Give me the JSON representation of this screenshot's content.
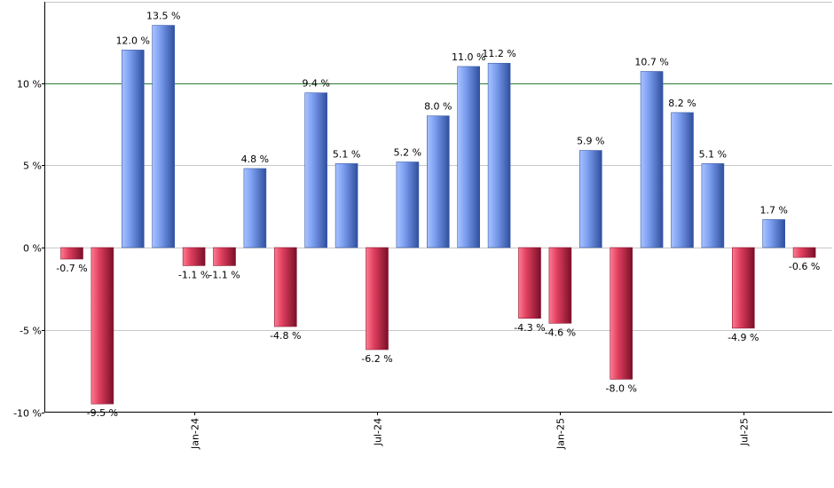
{
  "chart_data": {
    "type": "bar",
    "title": "",
    "xlabel": "",
    "ylabel": "",
    "ylim": [
      -10,
      14
    ],
    "y_ticks": [
      {
        "value": -10,
        "label": "-10 %"
      },
      {
        "value": -5,
        "label": "-5 %"
      },
      {
        "value": 0,
        "label": "0 %"
      },
      {
        "value": 5,
        "label": "5 %"
      },
      {
        "value": 10,
        "label": "10 %"
      }
    ],
    "reference_line": {
      "value": 10,
      "color": "#2e7d32"
    },
    "x_ticks": [
      {
        "label": "Jan-24",
        "index": 4
      },
      {
        "label": "Jul-24",
        "index": 10
      },
      {
        "label": "Jan-25",
        "index": 16
      },
      {
        "label": "Jul-25",
        "index": 22
      }
    ],
    "values": [
      -0.7,
      -9.5,
      12.0,
      13.5,
      -1.1,
      -1.1,
      4.8,
      -4.8,
      9.4,
      5.1,
      -6.2,
      5.2,
      8.0,
      11.0,
      11.2,
      -4.3,
      -4.6,
      5.9,
      -8.0,
      10.7,
      8.2,
      5.1,
      -4.9,
      1.7,
      -0.6
    ],
    "labels": [
      "-0.7 %",
      "-9.5 %",
      "12.0 %",
      "13.5 %",
      "-1.1 %",
      "-1.1 %",
      "4.8 %",
      "-4.8 %",
      "9.4 %",
      "5.1 %",
      "-6.2 %",
      "5.2 %",
      "8.0 %",
      "11.0 %",
      "11.2 %",
      "-4.3 %",
      "-4.6 %",
      "5.9 %",
      "-8.0 %",
      "10.7 %",
      "8.2 %",
      "5.1 %",
      "-4.9 %",
      "1.7 %",
      "-0.6 %"
    ],
    "colors": {
      "positive": "#5b7fd6",
      "negative": "#c8284a",
      "grid": "#c8c8c8",
      "axis": "#000000"
    },
    "grid": true,
    "legend": "none"
  }
}
